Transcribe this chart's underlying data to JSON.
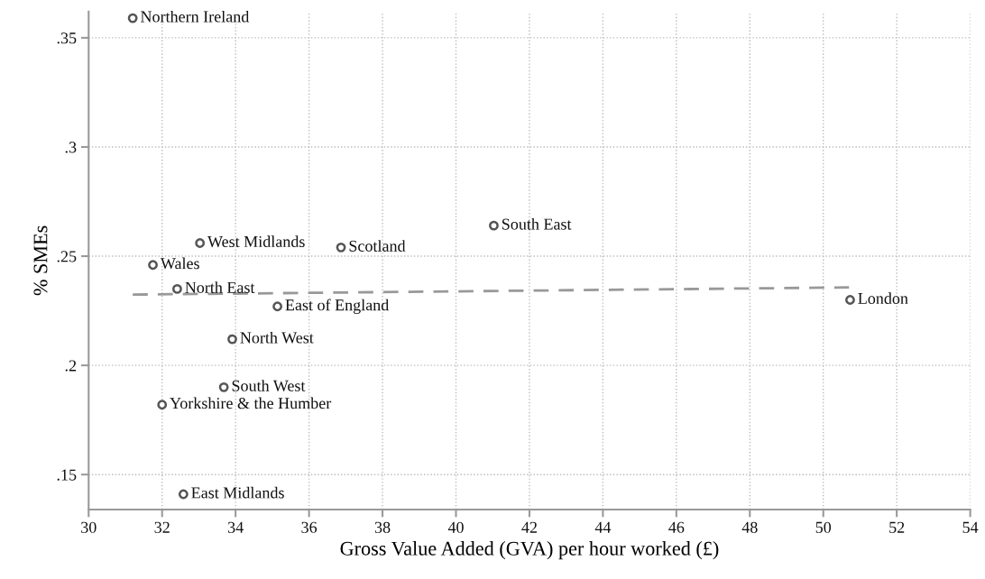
{
  "chart_data": {
    "type": "scatter",
    "xlabel": "Gross Value Added (GVA) per hour worked (£)",
    "ylabel": "% SMEs",
    "xlim": [
      30,
      54
    ],
    "xticks": [
      30,
      32,
      34,
      36,
      38,
      40,
      42,
      44,
      46,
      48,
      50,
      52,
      54
    ],
    "ylim": [
      0.134,
      0.362
    ],
    "yticks": [
      {
        "value": 0.15,
        "label": ".15"
      },
      {
        "value": 0.2,
        "label": ".2"
      },
      {
        "value": 0.25,
        "label": ".25"
      },
      {
        "value": 0.3,
        "label": ".3"
      },
      {
        "value": 0.35,
        "label": ".35"
      }
    ],
    "grid": true,
    "marker": "circle",
    "series": [
      {
        "color": "#555555",
        "x": [
          31.2,
          31.75,
          33.03,
          36.87,
          41.03,
          32.41,
          35.14,
          50.73,
          33.91,
          33.68,
          32.0,
          32.58
        ],
        "values": [
          0.359,
          0.246,
          0.256,
          0.254,
          0.264,
          0.235,
          0.227,
          0.23,
          0.212,
          0.19,
          0.182,
          0.141
        ],
        "value_labels": [
          "Northern Ireland",
          "Wales",
          "West Midlands",
          "Scotland",
          "South East",
          "North East",
          "East of England",
          "London",
          "North West",
          "South West",
          "Yorkshire & the Humber",
          "East Midlands"
        ]
      },
      {
        "type": "line",
        "color": "#999999",
        "line_style": "dashed",
        "marker": "none",
        "x": [
          31.2,
          50.7
        ],
        "values": [
          0.2324,
          0.2357
        ]
      }
    ]
  }
}
